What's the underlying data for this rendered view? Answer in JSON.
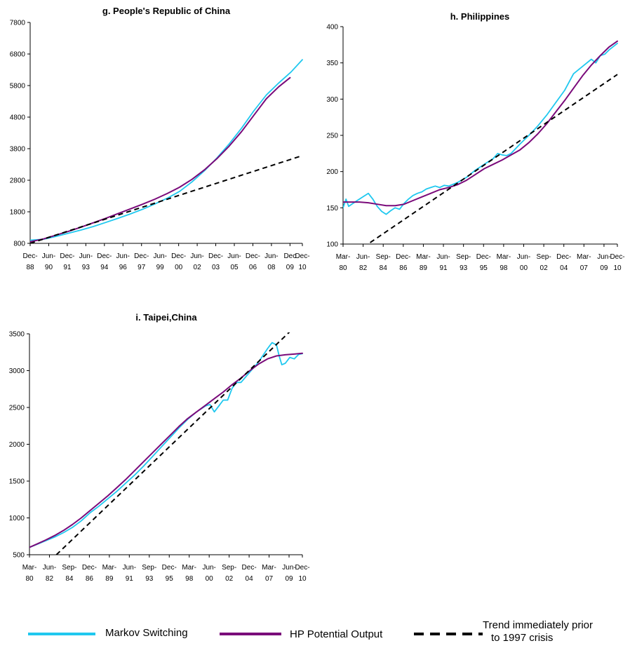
{
  "colors": {
    "markov": "#1fc8ef",
    "hp": "#7a0a7a",
    "trend": "#000000"
  },
  "legend": {
    "markov": "Markov Switching",
    "hp": "HP Potential Output",
    "trend_line1": "Trend immediately prior",
    "trend_line2": "to 1997 crisis"
  },
  "chart_data": [
    {
      "id": "g",
      "type": "line",
      "title": "g. People's Republic of China",
      "x_range": [
        1988.917,
        2010.917
      ],
      "ylim": [
        800,
        7800
      ],
      "yticks": [
        800,
        1800,
        2800,
        3800,
        4800,
        5800,
        6800,
        7800
      ],
      "xticks": [
        {
          "x": 1988.917,
          "line1": "Dec-",
          "line2": "88"
        },
        {
          "x": 1990.417,
          "line1": "Jun-",
          "line2": "90"
        },
        {
          "x": 1991.917,
          "line1": "Dec-",
          "line2": "91"
        },
        {
          "x": 1993.417,
          "line1": "Jun-",
          "line2": "93"
        },
        {
          "x": 1994.917,
          "line1": "Dec-",
          "line2": "94"
        },
        {
          "x": 1996.417,
          "line1": "Jun-",
          "line2": "96"
        },
        {
          "x": 1997.917,
          "line1": "Dec-",
          "line2": "97"
        },
        {
          "x": 1999.417,
          "line1": "Jun-",
          "line2": "99"
        },
        {
          "x": 2000.917,
          "line1": "Dec-",
          "line2": "00"
        },
        {
          "x": 2002.417,
          "line1": "Jun-",
          "line2": "02"
        },
        {
          "x": 2003.917,
          "line1": "Dec-",
          "line2": "03"
        },
        {
          "x": 2005.417,
          "line1": "Jun-",
          "line2": "05"
        },
        {
          "x": 2006.917,
          "line1": "Dec-",
          "line2": "06"
        },
        {
          "x": 2008.417,
          "line1": "Jun-",
          "line2": "08"
        },
        {
          "x": 2009.917,
          "line1": "Dec",
          "line2": "09"
        },
        {
          "x": 2010.917,
          "line1": "Dec-",
          "line2": "10"
        }
      ],
      "series": [
        {
          "key": "markov",
          "x": [
            1988.917,
            1990,
            1991,
            1992,
            1993,
            1994,
            1995,
            1996,
            1997,
            1998,
            1999,
            2000,
            2001,
            2002,
            2003,
            2004,
            2005,
            2006,
            2007,
            2008,
            2009,
            2010,
            2010.917
          ],
          "values": [
            900,
            930,
            1020,
            1120,
            1220,
            1330,
            1460,
            1590,
            1730,
            1880,
            2050,
            2230,
            2450,
            2750,
            3100,
            3500,
            3950,
            4450,
            5000,
            5500,
            5880,
            6230,
            6620
          ]
        },
        {
          "key": "hp",
          "x": [
            1988.917,
            1990,
            1991,
            1992,
            1993,
            1994,
            1995,
            1996,
            1997,
            1998,
            1999,
            2000,
            2001,
            2002,
            2003,
            2004,
            2005,
            2006,
            2007,
            2008,
            2009,
            2009.917
          ],
          "values": [
            850,
            940,
            1060,
            1180,
            1310,
            1450,
            1590,
            1740,
            1890,
            2040,
            2200,
            2380,
            2580,
            2830,
            3130,
            3480,
            3880,
            4340,
            4860,
            5380,
            5760,
            6050
          ]
        },
        {
          "key": "trend",
          "x": [
            1988.917,
            2010.917
          ],
          "values": [
            800,
            3580
          ]
        }
      ]
    },
    {
      "id": "h",
      "type": "line",
      "title": "h. Philippines",
      "x_range": [
        1980.167,
        2010.917
      ],
      "ylim": [
        100,
        400
      ],
      "yticks": [
        100,
        150,
        200,
        250,
        300,
        350,
        400
      ],
      "xticks": [
        {
          "x": 1980.167,
          "line1": "Mar-",
          "line2": "80"
        },
        {
          "x": 1982.417,
          "line1": "Jun-",
          "line2": "82"
        },
        {
          "x": 1984.667,
          "line1": "Sep-",
          "line2": "84"
        },
        {
          "x": 1986.917,
          "line1": "Dec-",
          "line2": "86"
        },
        {
          "x": 1989.167,
          "line1": "Mar-",
          "line2": "89"
        },
        {
          "x": 1991.417,
          "line1": "Jun-",
          "line2": "91"
        },
        {
          "x": 1993.667,
          "line1": "Sep-",
          "line2": "93"
        },
        {
          "x": 1995.917,
          "line1": "Dec-",
          "line2": "95"
        },
        {
          "x": 1998.167,
          "line1": "Mar-",
          "line2": "98"
        },
        {
          "x": 2000.417,
          "line1": "Jun-",
          "line2": "00"
        },
        {
          "x": 2002.667,
          "line1": "Sep-",
          "line2": "02"
        },
        {
          "x": 2004.917,
          "line1": "Dec-",
          "line2": "04"
        },
        {
          "x": 2007.167,
          "line1": "Mar-",
          "line2": "07"
        },
        {
          "x": 2009.417,
          "line1": "Jun-",
          "line2": "09"
        },
        {
          "x": 2010.917,
          "line1": "Dec-",
          "line2": "10"
        }
      ],
      "series": [
        {
          "key": "markov",
          "x": [
            1980.167,
            1980.5,
            1980.8,
            1981.5,
            1982.5,
            1983,
            1983.5,
            1984,
            1984.5,
            1985,
            1985.5,
            1986,
            1986.5,
            1987,
            1987.5,
            1988,
            1988.5,
            1989,
            1989.5,
            1990,
            1990.5,
            1991,
            1991.5,
            1992,
            1993,
            1994,
            1995,
            1996,
            1997,
            1997.5,
            1998,
            1998.5,
            1999,
            2000,
            2001,
            2002,
            2003,
            2004,
            2005,
            2006,
            2007,
            2008,
            2008.5,
            2009,
            2009.5,
            2010,
            2010.917
          ],
          "values": [
            150,
            162,
            152,
            158,
            166,
            170,
            162,
            152,
            145,
            141,
            146,
            150,
            148,
            156,
            162,
            167,
            170,
            172,
            176,
            178,
            180,
            178,
            181,
            180,
            185,
            192,
            202,
            210,
            218,
            225,
            223,
            222,
            225,
            238,
            250,
            263,
            278,
            295,
            312,
            335,
            345,
            355,
            350,
            360,
            362,
            368,
            377
          ]
        },
        {
          "key": "hp",
          "x": [
            1980.167,
            1982,
            1983,
            1984,
            1985,
            1986,
            1987,
            1988,
            1989,
            1990,
            1991,
            1992,
            1993,
            1994,
            1995,
            1996,
            1997,
            1998,
            1999,
            2000,
            2001,
            2002,
            2003,
            2004,
            2005,
            2006,
            2007,
            2008,
            2009,
            2010,
            2010.917
          ],
          "values": [
            158,
            158,
            157,
            155,
            153,
            153,
            155,
            160,
            165,
            170,
            175,
            178,
            182,
            188,
            196,
            204,
            210,
            216,
            223,
            230,
            240,
            252,
            266,
            282,
            298,
            315,
            332,
            347,
            360,
            372,
            380
          ]
        },
        {
          "key": "trend",
          "x": [
            1983.2,
            2010.917
          ],
          "values": [
            102,
            334
          ]
        }
      ]
    },
    {
      "id": "i",
      "type": "line",
      "title": "i. Taipei,China",
      "x_range": [
        1980.167,
        2010.917
      ],
      "ylim": [
        500,
        3500
      ],
      "yticks": [
        500,
        1000,
        1500,
        2000,
        2500,
        3000,
        3500
      ],
      "xticks": [
        {
          "x": 1980.167,
          "line1": "Mar-",
          "line2": "80"
        },
        {
          "x": 1982.417,
          "line1": "Jun-",
          "line2": "82"
        },
        {
          "x": 1984.667,
          "line1": "Sep-",
          "line2": "84"
        },
        {
          "x": 1986.917,
          "line1": "Dec-",
          "line2": "86"
        },
        {
          "x": 1989.167,
          "line1": "Mar-",
          "line2": "89"
        },
        {
          "x": 1991.417,
          "line1": "Jun-",
          "line2": "91"
        },
        {
          "x": 1993.667,
          "line1": "Sep-",
          "line2": "93"
        },
        {
          "x": 1995.917,
          "line1": "Dec-",
          "line2": "95"
        },
        {
          "x": 1998.167,
          "line1": "Mar-",
          "line2": "98"
        },
        {
          "x": 2000.417,
          "line1": "Jun-",
          "line2": "00"
        },
        {
          "x": 2002.667,
          "line1": "Sep-",
          "line2": "02"
        },
        {
          "x": 2004.917,
          "line1": "Dec-",
          "line2": "04"
        },
        {
          "x": 2007.167,
          "line1": "Mar-",
          "line2": "07"
        },
        {
          "x": 2009.417,
          "line1": "Jun-",
          "line2": "09"
        },
        {
          "x": 2010.917,
          "line1": "Dec-",
          "line2": "10"
        }
      ],
      "series": [
        {
          "key": "markov",
          "x": [
            1980.167,
            1981,
            1982,
            1983,
            1984,
            1985,
            1986,
            1987,
            1988,
            1989,
            1990,
            1991,
            1992,
            1993,
            1994,
            1995,
            1996,
            1997,
            1998,
            1999,
            2000,
            2000.5,
            2001,
            2001.5,
            2002,
            2002.5,
            2003,
            2003.5,
            2004,
            2005,
            2006,
            2007,
            2007.5,
            2008,
            2008.3,
            2008.6,
            2009,
            2009.5,
            2010,
            2010.5,
            2010.917
          ],
          "values": [
            600,
            640,
            690,
            740,
            800,
            870,
            960,
            1070,
            1160,
            1260,
            1360,
            1470,
            1580,
            1700,
            1830,
            1960,
            2090,
            2220,
            2340,
            2440,
            2520,
            2540,
            2440,
            2520,
            2600,
            2600,
            2760,
            2840,
            2840,
            2980,
            3120,
            3300,
            3380,
            3350,
            3200,
            3080,
            3100,
            3180,
            3160,
            3220,
            3230
          ]
        },
        {
          "key": "hp",
          "x": [
            1980.167,
            1981,
            1982,
            1983,
            1984,
            1985,
            1986,
            1987,
            1988,
            1989,
            1990,
            1991,
            1992,
            1993,
            1994,
            1995,
            1996,
            1997,
            1998,
            1999,
            2000,
            2001,
            2002,
            2003,
            2004,
            2005,
            2006,
            2007,
            2008,
            2009,
            2010,
            2010.917
          ],
          "values": [
            600,
            645,
            700,
            760,
            830,
            910,
            1000,
            1100,
            1200,
            1300,
            1410,
            1520,
            1640,
            1760,
            1880,
            2000,
            2120,
            2240,
            2350,
            2440,
            2530,
            2620,
            2710,
            2810,
            2900,
            3000,
            3090,
            3160,
            3200,
            3215,
            3225,
            3235
          ]
        },
        {
          "key": "trend",
          "x": [
            1983.2,
            2009.6
          ],
          "values": [
            500,
            3540
          ]
        }
      ]
    }
  ]
}
